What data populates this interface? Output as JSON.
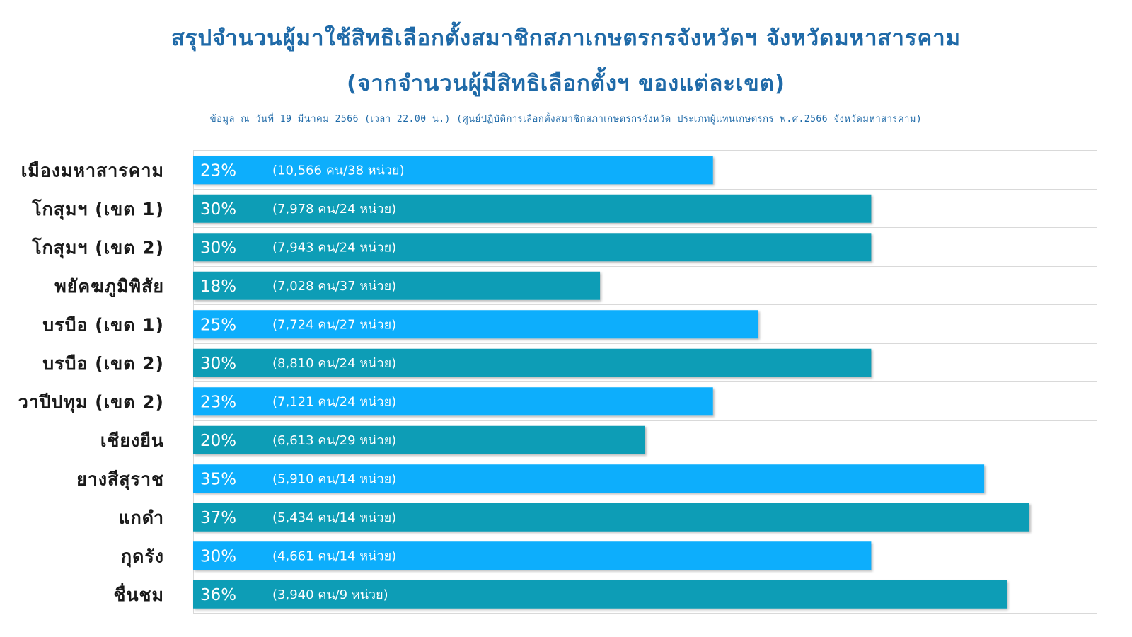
{
  "title": {
    "line1": "สรุปจำนวนผู้มาใช้สิทธิเลือกตั้งสมาชิกสภาเกษตรกรจังหวัดฯ จังหวัดมหาสารคาม",
    "line2": "(จากจำนวนผู้มีสิทธิเลือกตั้งฯ ของแต่ละเขต)"
  },
  "subtitle": "ข้อมูล ณ วันที่ 19 มีนาคม 2566 (เวลา 22.00 น.) (ศูนย์ปฏิบัติการเลือกตั้งสมาชิกสภาเกษตรกรจังหวัด ประเภทผู้แทนเกษตรกร พ.ศ.2566 จังหวัดมหาสารคาม)",
  "colors": {
    "light_blue": "#0aaefc",
    "teal": "#0e9db6",
    "title": "#1f6aa8",
    "grid": "#d9d9d9",
    "label": "#1a1a1a"
  },
  "chart_data": {
    "type": "bar",
    "orientation": "horizontal",
    "categories": [
      "เมืองมหาสารคาม",
      "โกสุมฯ (เขต 1)",
      "โกสุมฯ (เขต 2)",
      "พยัคฆภูมิพิสัย",
      "บรบือ (เขต 1)",
      "บรบือ (เขต 2)",
      "วาปีปทุม (เขต 2)",
      "เชียงยืน",
      "ยางสีสุราช",
      "แกดำ",
      "กุดรัง",
      "ชื่นชม"
    ],
    "values": [
      23,
      30,
      30,
      18,
      25,
      30,
      23,
      20,
      35,
      37,
      30,
      36
    ],
    "value_labels": [
      "23%",
      "30%",
      "30%",
      "18%",
      "25%",
      "30%",
      "23%",
      "20%",
      "35%",
      "37%",
      "30%",
      "36%"
    ],
    "detail_labels": [
      "(10,566 คน/38 หน่วย)",
      "(7,978 คน/24 หน่วย)",
      "(7,943 คน/24 หน่วย)",
      "(7,028 คน/37 หน่วย)",
      "(7,724 คน/27 หน่วย)",
      "(8,810 คน/24 หน่วย)",
      "(7,121 คน/24 หน่วย)",
      "(6,613 คน/29 หน่วย)",
      "(5,910 คน/14 หน่วย)",
      "(5,434 คน/14 หน่วย)",
      "(4,661 คน/14 หน่วย)",
      "(3,940 คน/9 หน่วย)"
    ],
    "bar_colors": [
      "light_blue",
      "teal",
      "teal",
      "teal",
      "light_blue",
      "teal",
      "light_blue",
      "teal",
      "light_blue",
      "teal",
      "light_blue",
      "teal"
    ],
    "xlim": [
      0,
      37
    ],
    "grid": true,
    "legend": "none"
  }
}
